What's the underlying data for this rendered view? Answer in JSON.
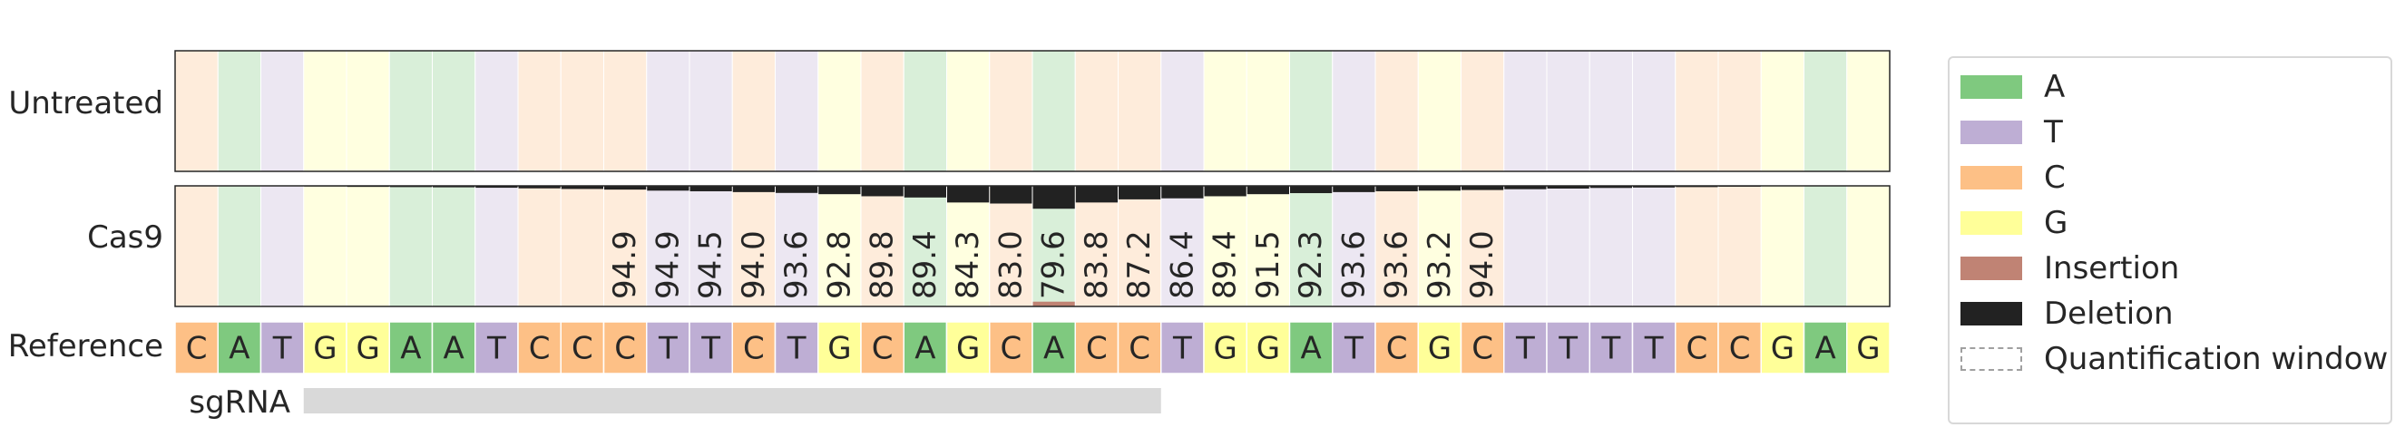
{
  "chart_data": {
    "type": "heatmap",
    "row_labels": [
      "Untreated",
      "Cas9",
      "Reference"
    ],
    "sgrna_label": "sgRNA",
    "reference_sequence": [
      "C",
      "A",
      "T",
      "G",
      "G",
      "A",
      "A",
      "T",
      "C",
      "C",
      "C",
      "T",
      "T",
      "C",
      "T",
      "G",
      "C",
      "A",
      "G",
      "C",
      "A",
      "C",
      "C",
      "T",
      "G",
      "G",
      "A",
      "T",
      "C",
      "G",
      "C",
      "T",
      "T",
      "T",
      "T",
      "C",
      "C",
      "G",
      "A",
      "G"
    ],
    "sgrna_span": [
      3,
      22
    ],
    "cas9_percent_labels": [
      {
        "index": 10,
        "value": "94.9"
      },
      {
        "index": 11,
        "value": "94.9"
      },
      {
        "index": 12,
        "value": "94.5"
      },
      {
        "index": 13,
        "value": "94.0"
      },
      {
        "index": 14,
        "value": "93.6"
      },
      {
        "index": 15,
        "value": "92.8"
      },
      {
        "index": 16,
        "value": "89.8"
      },
      {
        "index": 17,
        "value": "89.4"
      },
      {
        "index": 18,
        "value": "84.3"
      },
      {
        "index": 19,
        "value": "83.0"
      },
      {
        "index": 20,
        "value": "79.6"
      },
      {
        "index": 21,
        "value": "83.8"
      },
      {
        "index": 22,
        "value": "87.2"
      },
      {
        "index": 23,
        "value": "86.4"
      },
      {
        "index": 24,
        "value": "89.4"
      },
      {
        "index": 25,
        "value": "91.5"
      },
      {
        "index": 26,
        "value": "92.3"
      },
      {
        "index": 27,
        "value": "93.6"
      },
      {
        "index": 28,
        "value": "93.6"
      },
      {
        "index": 29,
        "value": "93.2"
      },
      {
        "index": 30,
        "value": "94.0"
      }
    ],
    "cas9_deletion_percent": [
      0.0,
      0.0,
      0.2,
      0.3,
      0.5,
      0.6,
      0.7,
      0.9,
      1.2,
      1.5,
      1.8,
      2.3,
      2.6,
      3.0,
      3.4,
      4.0,
      5.0,
      5.6,
      8.0,
      8.5,
      11.0,
      8.0,
      6.5,
      6.0,
      5.0,
      4.0,
      3.5,
      3.0,
      2.6,
      2.3,
      2.0,
      1.6,
      1.3,
      1.0,
      0.8,
      0.6,
      0.4,
      0.2,
      0.1,
      0.0
    ],
    "cas9_insertion_percent": [
      0,
      0,
      0,
      0,
      0,
      0,
      0,
      0,
      0,
      0,
      0,
      0,
      0,
      0,
      0,
      0,
      0,
      0,
      0,
      0,
      2.2,
      0,
      0,
      0,
      0,
      0,
      0,
      0,
      0,
      0,
      0,
      0,
      0,
      0,
      0,
      0,
      0,
      0,
      0,
      0
    ],
    "legend": [
      {
        "label": "A",
        "color": "#7fc97f",
        "style": "fill"
      },
      {
        "label": "T",
        "color": "#beaed4",
        "style": "fill"
      },
      {
        "label": "C",
        "color": "#fdc086",
        "style": "fill"
      },
      {
        "label": "G",
        "color": "#ffff99",
        "style": "fill"
      },
      {
        "label": "Insertion",
        "color": "#c08374",
        "style": "fill"
      },
      {
        "label": "Deletion",
        "color": "#222222",
        "style": "fill"
      },
      {
        "label": "Quantification window",
        "color": "#a0a0a0",
        "style": "dashed"
      }
    ],
    "colors": {
      "A": "#7fc97f",
      "T": "#beaed4",
      "C": "#fdc086",
      "G": "#ffff99",
      "insertion": "#c08374",
      "deletion": "#222222",
      "sgrna_bar": "#d9d9d9"
    },
    "legend_position": "right"
  }
}
